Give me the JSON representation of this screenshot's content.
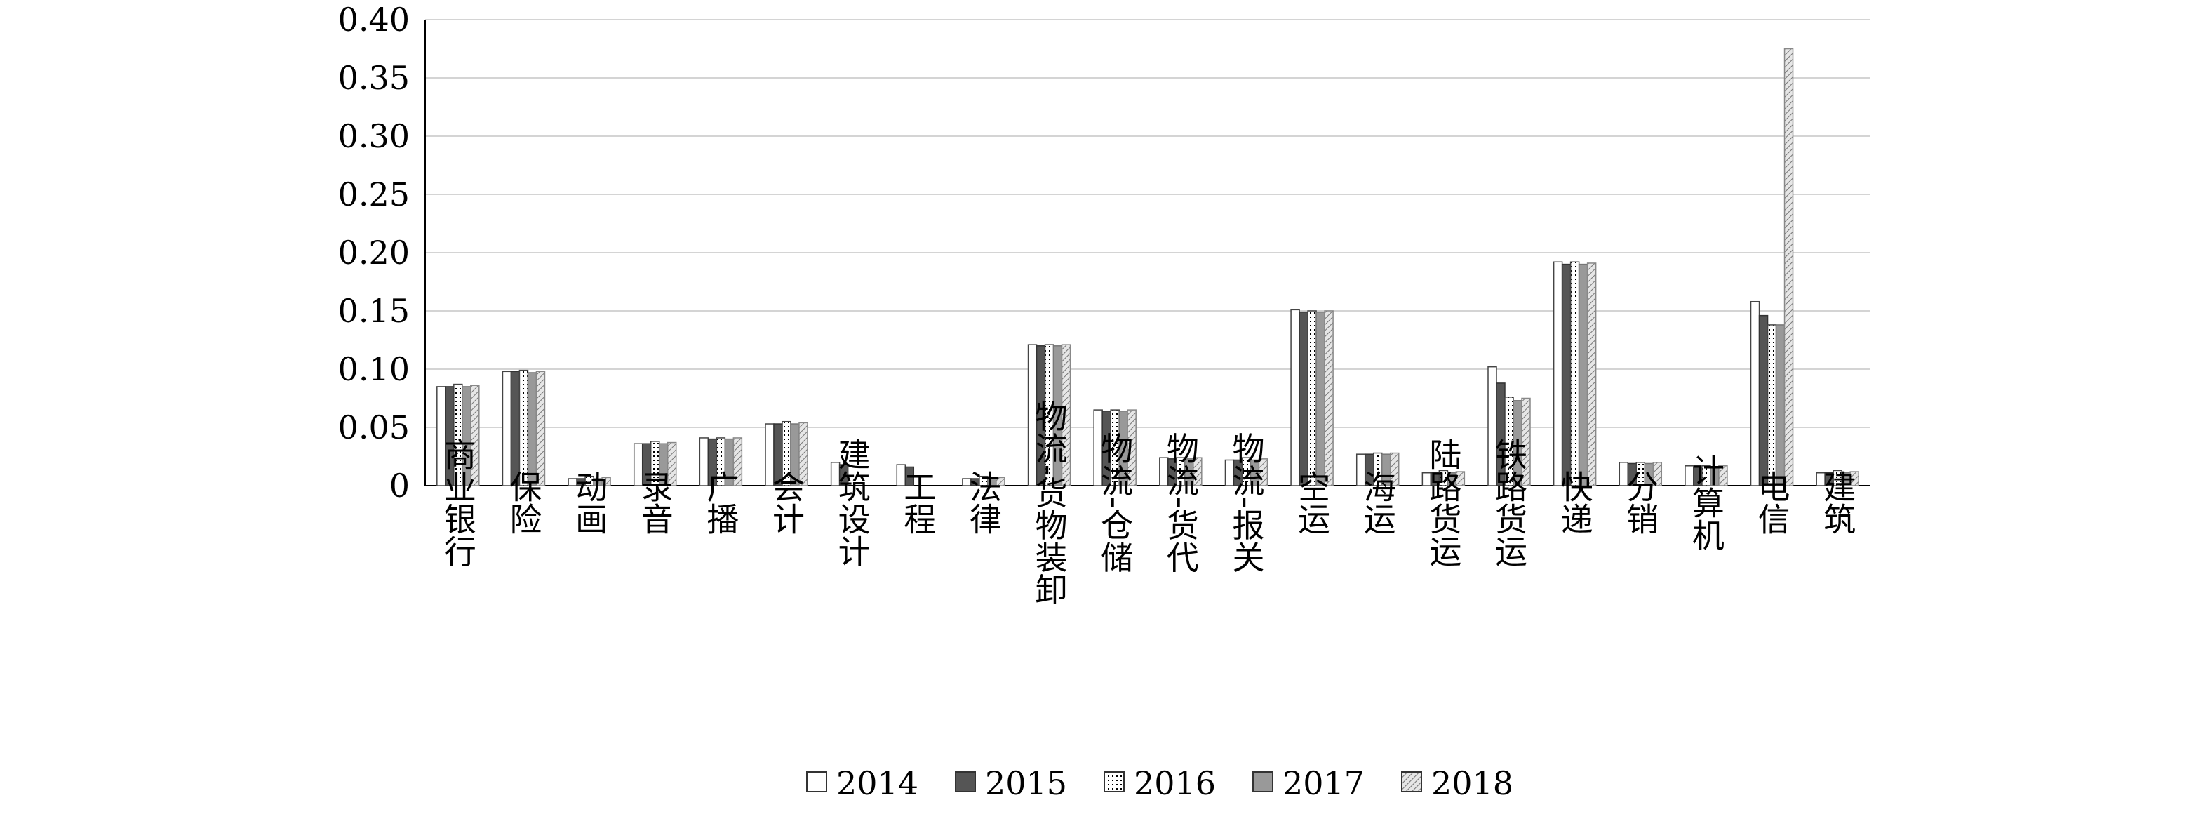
{
  "chart_data": {
    "type": "bar",
    "title": "",
    "xlabel": "",
    "ylabel": "",
    "ylim": [
      0,
      0.4
    ],
    "yticks": [
      "0",
      "0.05",
      "0.10",
      "0.15",
      "0.20",
      "0.25",
      "0.30",
      "0.35",
      "0.40"
    ],
    "grid": true,
    "legend_position": "bottom",
    "categories": [
      "商业银行",
      "保险",
      "动画",
      "录音",
      "广播",
      "会计",
      "建筑设计",
      "工程",
      "法律",
      "物流-货物装卸",
      "物流-仓储",
      "物流-货代",
      "物流-报关",
      "空运",
      "海运",
      "陆路货运",
      "铁路货运",
      "快递",
      "分销",
      "计算机",
      "电信",
      "建筑"
    ],
    "series": [
      {
        "name": "2014",
        "color": "#ffffff",
        "pattern": "white",
        "values": [
          0.085,
          0.098,
          0.006,
          0.036,
          0.041,
          0.053,
          0.02,
          0.018,
          0.006,
          0.121,
          0.065,
          0.024,
          0.022,
          0.151,
          0.027,
          0.011,
          0.102,
          0.192,
          0.02,
          0.017,
          0.158,
          0.011
        ]
      },
      {
        "name": "2015",
        "color": "#555555",
        "pattern": "dark",
        "values": [
          0.085,
          0.098,
          0.006,
          0.036,
          0.04,
          0.053,
          0.018,
          0.016,
          0.006,
          0.12,
          0.064,
          0.023,
          0.022,
          0.149,
          0.027,
          0.011,
          0.088,
          0.19,
          0.019,
          0.016,
          0.146,
          0.011
        ]
      },
      {
        "name": "2016",
        "color": "#ffffff",
        "pattern": "dotted",
        "values": [
          0.087,
          0.099,
          0.008,
          0.038,
          0.041,
          0.055,
          null,
          null,
          0.008,
          0.121,
          0.065,
          0.024,
          0.024,
          0.15,
          0.028,
          0.013,
          0.076,
          0.192,
          0.02,
          0.017,
          0.138,
          0.013
        ]
      },
      {
        "name": "2017",
        "color": "#999999",
        "pattern": "gray",
        "values": [
          0.085,
          0.097,
          0.006,
          0.036,
          0.04,
          0.053,
          null,
          null,
          0.006,
          0.12,
          0.064,
          0.023,
          0.022,
          0.149,
          0.027,
          0.011,
          0.073,
          0.19,
          0.019,
          0.016,
          0.138,
          0.011
        ]
      },
      {
        "name": "2018",
        "color": "#cccccc",
        "pattern": "hatched",
        "values": [
          0.086,
          0.098,
          0.007,
          0.037,
          0.041,
          0.054,
          null,
          null,
          0.007,
          0.121,
          0.065,
          0.024,
          0.023,
          0.15,
          0.028,
          0.012,
          0.075,
          0.191,
          0.02,
          0.017,
          0.375,
          0.012
        ]
      }
    ]
  }
}
